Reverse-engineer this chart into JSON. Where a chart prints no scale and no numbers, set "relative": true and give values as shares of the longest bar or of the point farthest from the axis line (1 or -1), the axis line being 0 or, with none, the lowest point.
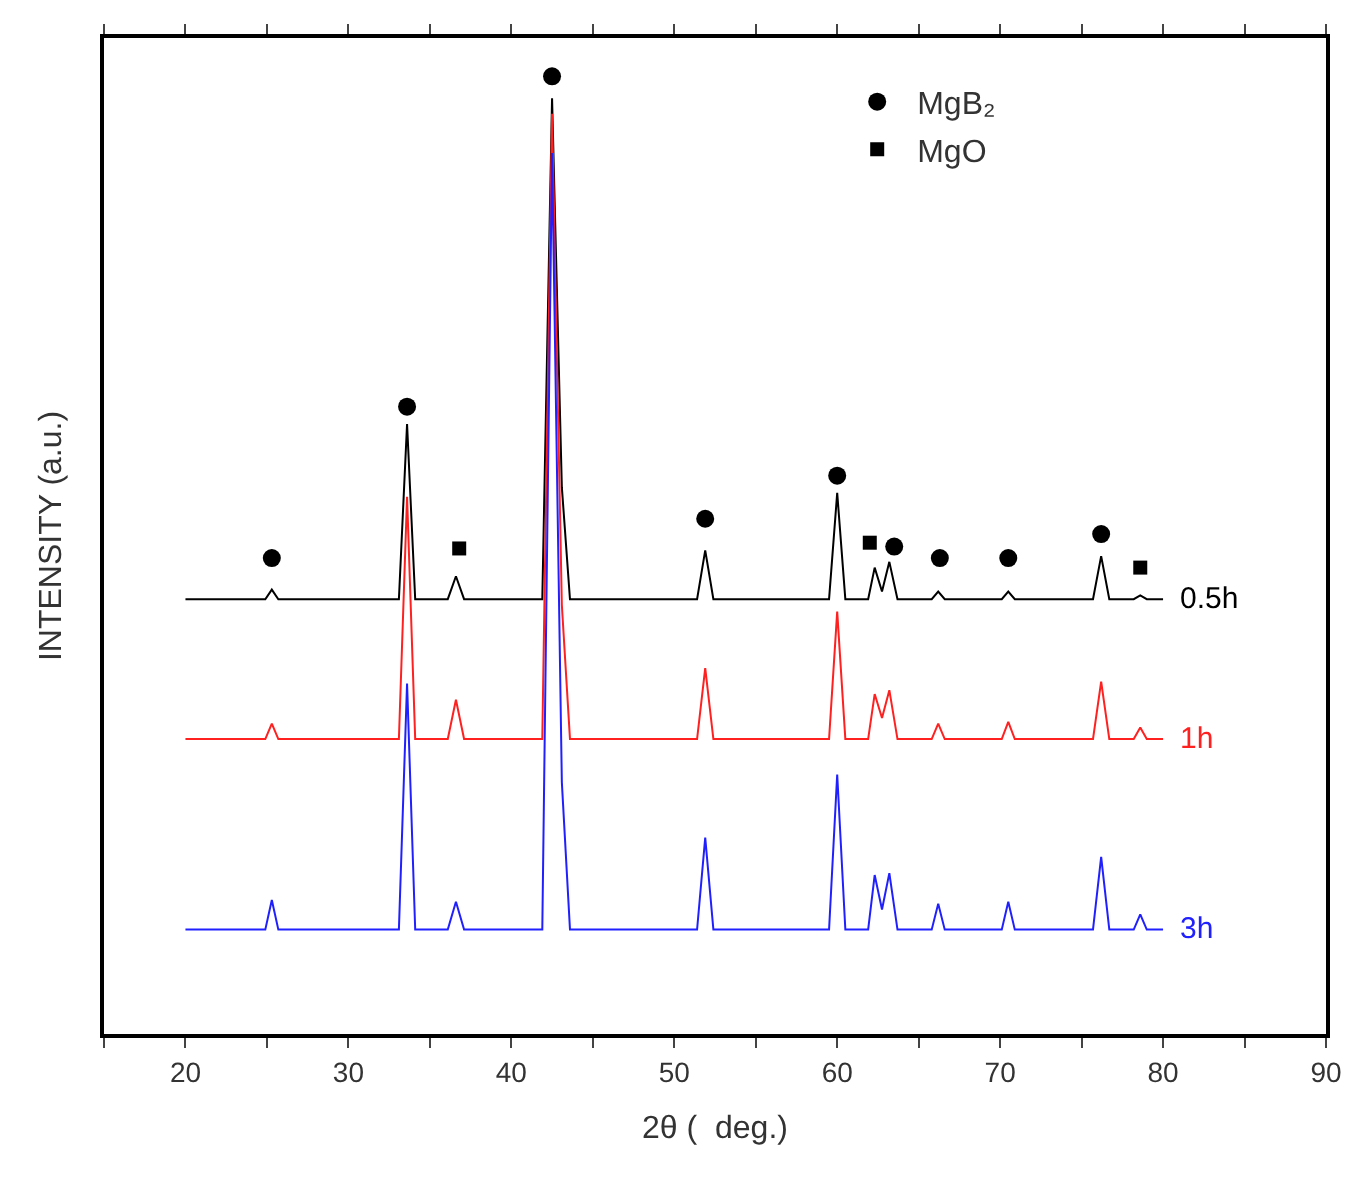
{
  "chart_data": {
    "type": "line",
    "xlabel": "2θ (  deg.)",
    "ylabel": "INTENSITY (a.u.)",
    "relative": true,
    "xlim": [
      15,
      90
    ],
    "xticks": [
      {
        "value": 15,
        "label": null
      },
      20,
      {
        "value": 25,
        "label": null
      },
      30,
      {
        "value": 35,
        "label": null
      },
      40,
      {
        "value": 45,
        "label": null
      },
      50,
      {
        "value": 55,
        "label": null
      },
      60,
      {
        "value": 65,
        "label": null
      },
      70,
      {
        "value": 75,
        "label": null
      },
      80,
      {
        "value": 85,
        "label": null
      },
      90
    ],
    "legend": "top right",
    "marker": "none",
    "line_style": "solid",
    "series": [
      {
        "name": "0.5h",
        "color": "#000000",
        "x": [
          20,
          24.9,
          25.3,
          25.7,
          33.1,
          33.6,
          34.1,
          36.1,
          36.6,
          37.1,
          41.9,
          42.5,
          43.1,
          43.6,
          51.4,
          51.9,
          52.4,
          59.5,
          60.0,
          60.5,
          61.9,
          62.3,
          62.75,
          63.2,
          63.7,
          65.8,
          66.2,
          66.6,
          70.1,
          70.5,
          70.9,
          75.7,
          76.2,
          76.7,
          78.2,
          78.6,
          79,
          80
        ],
        "values": [
          0.454,
          0.454,
          0.464,
          0.454,
          0.454,
          0.637,
          0.454,
          0.454,
          0.478,
          0.454,
          0.454,
          0.977,
          0.571,
          0.454,
          0.454,
          0.505,
          0.454,
          0.454,
          0.565,
          0.454,
          0.454,
          0.487,
          0.462,
          0.493,
          0.454,
          0.454,
          0.462,
          0.454,
          0.454,
          0.462,
          0.454,
          0.454,
          0.499,
          0.454,
          0.454,
          0.458,
          0.454,
          0.454
        ]
      },
      {
        "name": "1h",
        "color": "#ff2020",
        "x": [
          20,
          24.9,
          25.3,
          25.7,
          33.1,
          33.6,
          34.1,
          36.1,
          36.6,
          37.1,
          41.9,
          42.5,
          43.1,
          43.6,
          51.4,
          51.9,
          52.4,
          59.5,
          60.0,
          60.5,
          61.9,
          62.3,
          62.75,
          63.2,
          63.7,
          65.8,
          66.2,
          66.6,
          70.1,
          70.5,
          70.9,
          75.7,
          76.2,
          76.7,
          78.2,
          78.6,
          79,
          80
        ],
        "values": [
          0.308,
          0.308,
          0.324,
          0.308,
          0.308,
          0.561,
          0.308,
          0.308,
          0.349,
          0.308,
          0.308,
          0.961,
          0.448,
          0.308,
          0.308,
          0.382,
          0.308,
          0.308,
          0.441,
          0.308,
          0.308,
          0.355,
          0.33,
          0.359,
          0.308,
          0.308,
          0.324,
          0.308,
          0.308,
          0.326,
          0.308,
          0.308,
          0.368,
          0.308,
          0.308,
          0.32,
          0.308,
          0.308
        ]
      },
      {
        "name": "3h",
        "color": "#2020ff",
        "x": [
          20,
          24.9,
          25.3,
          25.7,
          33.1,
          33.6,
          34.1,
          36.1,
          36.6,
          37.1,
          41.9,
          42.5,
          43.1,
          43.6,
          51.4,
          51.9,
          52.4,
          59.5,
          60.0,
          60.5,
          61.9,
          62.3,
          62.75,
          63.2,
          63.7,
          65.8,
          66.2,
          66.6,
          70.1,
          70.5,
          70.9,
          75.7,
          76.2,
          76.7,
          78.2,
          78.6,
          79,
          80
        ],
        "values": [
          0.109,
          0.109,
          0.14,
          0.109,
          0.109,
          0.366,
          0.109,
          0.109,
          0.138,
          0.109,
          0.109,
          0.92,
          0.263,
          0.109,
          0.109,
          0.205,
          0.109,
          0.109,
          0.271,
          0.109,
          0.109,
          0.166,
          0.13,
          0.168,
          0.109,
          0.109,
          0.136,
          0.109,
          0.109,
          0.138,
          0.109,
          0.109,
          0.185,
          0.109,
          0.109,
          0.125,
          0.109,
          0.109
        ]
      },
      {
        "name": "MgB₂",
        "type": "scatter",
        "marker": "circle",
        "color": "#000000",
        "x": [
          25.3,
          33.6,
          42.5,
          51.9,
          60.0,
          63.5,
          66.3,
          70.5,
          76.2
        ],
        "values": [
          0.497,
          0.655,
          1,
          0.538,
          0.583,
          0.509,
          0.497,
          0.497,
          0.522
        ]
      },
      {
        "name": "MgO",
        "type": "scatter",
        "marker": "square",
        "color": "#000000",
        "x": [
          36.8,
          62.0,
          78.6
        ],
        "values": [
          0.507,
          0.513,
          0.487
        ]
      }
    ]
  }
}
